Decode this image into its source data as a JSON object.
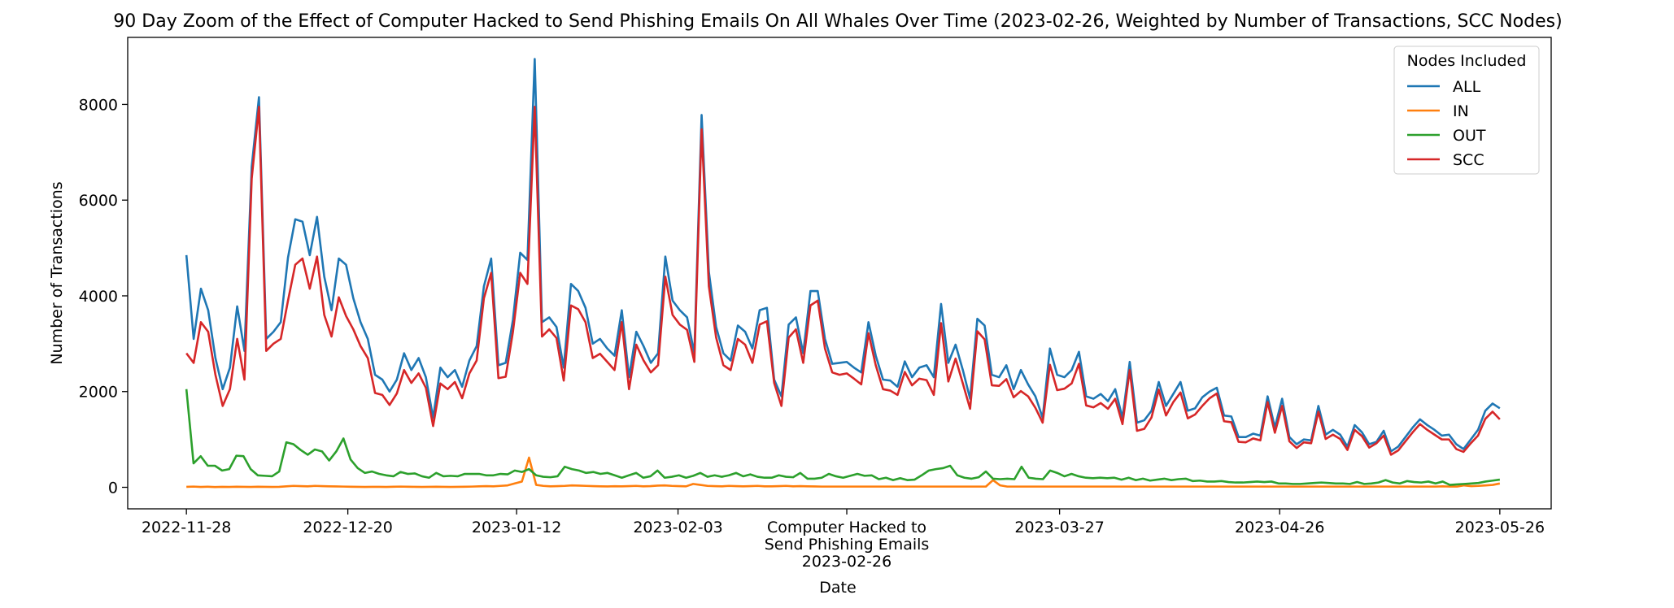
{
  "chart_data": {
    "type": "line",
    "title": "90 Day Zoom of the Effect of Computer Hacked to Send Phishing Emails On All Whales Over Time (2023-02-26, Weighted by Number of Transactions, SCC Nodes)",
    "xlabel": "Date",
    "ylabel": "Number of Transactions",
    "x_start": "2022-11-28",
    "x_end": "2023-05-26",
    "xlim": [
      "2022-11-20",
      "2023-06-02"
    ],
    "ylim": [
      -450,
      9400
    ],
    "x_ticks": [
      "2022-11-28",
      "2022-12-20",
      "2023-01-12",
      "2023-02-03",
      "2023-03-27",
      "2023-04-26",
      "2023-05-26"
    ],
    "y_ticks": [
      0,
      2000,
      4000,
      6000,
      8000
    ],
    "event_label": [
      "Computer Hacked to",
      "Send Phishing Emails",
      "2023-02-26"
    ],
    "event_date": "2023-02-26",
    "legend": {
      "title": "Nodes Included",
      "position": "top-right"
    },
    "grid": false,
    "series": [
      {
        "name": "ALL",
        "color": "#1f77b4",
        "values": [
          4850,
          3100,
          4150,
          3700,
          2700,
          2050,
          2500,
          3780,
          2850,
          6700,
          8150,
          3100,
          3250,
          3450,
          4800,
          5600,
          5550,
          4850,
          5650,
          4400,
          3700,
          4780,
          4650,
          3950,
          3450,
          3100,
          2350,
          2250,
          2000,
          2250,
          2800,
          2450,
          2700,
          2300,
          1450,
          2500,
          2300,
          2450,
          2100,
          2650,
          2950,
          4200,
          4780,
          2550,
          2600,
          3500,
          4900,
          4750,
          8950,
          3450,
          3550,
          3350,
          2500,
          4250,
          4100,
          3750,
          3000,
          3100,
          2900,
          2750,
          3700,
          2300,
          3250,
          2950,
          2600,
          2800,
          4820,
          3900,
          3700,
          3550,
          2800,
          7780,
          4500,
          3350,
          2800,
          2650,
          3380,
          3250,
          2900,
          3700,
          3750,
          2250,
          1900,
          3400,
          3550,
          2800,
          4100,
          4100,
          3100,
          2580,
          2600,
          2620,
          2500,
          2400,
          3450,
          2750,
          2250,
          2230,
          2100,
          2630,
          2300,
          2500,
          2550,
          2300,
          3830,
          2600,
          2980,
          2450,
          1850,
          3520,
          3380,
          2350,
          2300,
          2550,
          2050,
          2450,
          2150,
          1900,
          1450,
          2900,
          2350,
          2300,
          2450,
          2830,
          1900,
          1850,
          1950,
          1800,
          2050,
          1450,
          2620,
          1350,
          1400,
          1600,
          2200,
          1700,
          1950,
          2200,
          1600,
          1650,
          1880,
          2000,
          2080,
          1500,
          1480,
          1050,
          1050,
          1120,
          1080,
          1900,
          1250,
          1850,
          1050,
          900,
          1000,
          980,
          1700,
          1100,
          1200,
          1100,
          850,
          1300,
          1150,
          900,
          950,
          1180,
          750,
          850,
          1050,
          1250,
          1420,
          1300,
          1200,
          1080,
          1100,
          900,
          800,
          1000,
          1200,
          1600,
          1750,
          1650
        ]
      },
      {
        "name": "IN",
        "color": "#ff7f0e",
        "values": [
          10,
          15,
          8,
          12,
          5,
          10,
          8,
          12,
          10,
          8,
          12,
          10,
          8,
          10,
          20,
          30,
          25,
          20,
          30,
          25,
          20,
          18,
          15,
          12,
          10,
          8,
          10,
          10,
          8,
          12,
          15,
          12,
          10,
          8,
          10,
          12,
          10,
          8,
          10,
          12,
          15,
          20,
          25,
          20,
          30,
          40,
          80,
          120,
          620,
          50,
          30,
          20,
          25,
          30,
          40,
          35,
          30,
          25,
          20,
          18,
          22,
          20,
          25,
          30,
          20,
          25,
          35,
          40,
          30,
          25,
          20,
          70,
          50,
          30,
          25,
          20,
          30,
          25,
          20,
          25,
          30,
          20,
          20,
          25,
          30,
          20,
          25,
          20,
          18,
          15,
          15,
          15,
          15,
          15,
          15,
          15,
          15,
          15,
          15,
          15,
          15,
          15,
          15,
          15,
          15,
          15,
          15,
          15,
          15,
          15,
          15,
          15,
          15,
          150,
          40,
          15,
          15,
          15,
          15,
          15,
          15,
          15,
          15,
          15,
          15,
          15,
          15,
          15,
          15,
          15,
          15,
          15,
          15,
          15,
          15,
          15,
          15,
          15,
          15,
          15,
          15,
          15,
          15,
          15,
          15,
          15,
          15,
          15,
          15,
          15,
          15,
          15,
          15,
          15,
          15,
          15,
          15,
          15,
          15,
          15,
          15,
          15,
          15,
          15,
          15,
          15,
          15,
          15,
          15,
          15,
          15,
          15,
          15,
          15,
          15,
          15,
          20,
          15,
          15,
          40,
          25,
          30,
          40,
          50,
          80
        ]
      },
      {
        "name": "OUT",
        "color": "#2ca02c",
        "values": [
          2050,
          500,
          650,
          450,
          450,
          350,
          380,
          660,
          650,
          380,
          250,
          240,
          230,
          330,
          940,
          900,
          780,
          680,
          790,
          750,
          560,
          750,
          1020,
          580,
          400,
          300,
          330,
          280,
          250,
          230,
          320,
          280,
          290,
          230,
          200,
          300,
          230,
          240,
          230,
          280,
          280,
          280,
          250,
          250,
          280,
          270,
          350,
          320,
          380,
          250,
          220,
          210,
          230,
          430,
          380,
          350,
          300,
          320,
          280,
          300,
          250,
          200,
          250,
          300,
          200,
          230,
          350,
          200,
          220,
          250,
          200,
          240,
          300,
          220,
          250,
          220,
          250,
          300,
          230,
          270,
          220,
          200,
          200,
          250,
          220,
          210,
          300,
          180,
          180,
          200,
          280,
          230,
          200,
          240,
          280,
          240,
          250,
          170,
          200,
          150,
          190,
          150,
          160,
          250,
          350,
          380,
          400,
          450,
          250,
          200,
          180,
          210,
          330,
          180,
          170,
          180,
          170,
          430,
          200,
          180,
          170,
          350,
          300,
          230,
          280,
          230,
          200,
          190,
          200,
          190,
          200,
          160,
          200,
          150,
          180,
          140,
          160,
          180,
          150,
          170,
          180,
          130,
          140,
          120,
          120,
          130,
          110,
          100,
          100,
          110,
          120,
          110,
          120,
          80,
          80,
          70,
          70,
          80,
          90,
          100,
          90,
          80,
          80,
          70,
          110,
          70,
          80,
          100,
          150,
          100,
          80,
          130,
          110,
          100,
          120,
          80,
          120,
          50,
          60,
          70,
          80,
          90,
          120,
          140,
          160
        ]
      },
      {
        "name": "SCC",
        "color": "#d62728",
        "values": [
          2800,
          2600,
          3450,
          3250,
          2350,
          1700,
          2050,
          3100,
          2250,
          6450,
          7950,
          2850,
          3000,
          3100,
          3900,
          4650,
          4780,
          4150,
          4820,
          3600,
          3150,
          3970,
          3580,
          3300,
          2950,
          2700,
          1970,
          1930,
          1720,
          1960,
          2450,
          2180,
          2380,
          2080,
          1280,
          2170,
          2050,
          2200,
          1860,
          2380,
          2650,
          3950,
          4480,
          2280,
          2310,
          3250,
          4480,
          4250,
          7950,
          3150,
          3300,
          3120,
          2230,
          3800,
          3720,
          3450,
          2700,
          2790,
          2620,
          2450,
          3450,
          2050,
          2980,
          2650,
          2400,
          2550,
          4400,
          3600,
          3400,
          3290,
          2620,
          7480,
          4200,
          3130,
          2550,
          2450,
          3100,
          2980,
          2600,
          3400,
          3470,
          2180,
          1700,
          3130,
          3300,
          2600,
          3800,
          3900,
          2900,
          2400,
          2350,
          2380,
          2270,
          2150,
          3220,
          2550,
          2050,
          2020,
          1930,
          2410,
          2130,
          2270,
          2240,
          1930,
          3430,
          2210,
          2690,
          2170,
          1640,
          3260,
          3090,
          2130,
          2120,
          2260,
          1880,
          2010,
          1900,
          1660,
          1350,
          2560,
          2030,
          2060,
          2170,
          2580,
          1710,
          1670,
          1760,
          1640,
          1850,
          1320,
          2450,
          1180,
          1220,
          1460,
          2040,
          1500,
          1780,
          1980,
          1440,
          1520,
          1700,
          1860,
          1960,
          1380,
          1360,
          950,
          940,
          1020,
          980,
          1780,
          1140,
          1700,
          960,
          820,
          940,
          920,
          1580,
          1010,
          1100,
          1010,
          780,
          1200,
          1070,
          830,
          920,
          1080,
          680,
          770,
          960,
          1150,
          1320,
          1200,
          1100,
          1000,
          1000,
          800,
          740,
          920,
          1080,
          1430,
          1580,
          1420
        ]
      }
    ]
  }
}
